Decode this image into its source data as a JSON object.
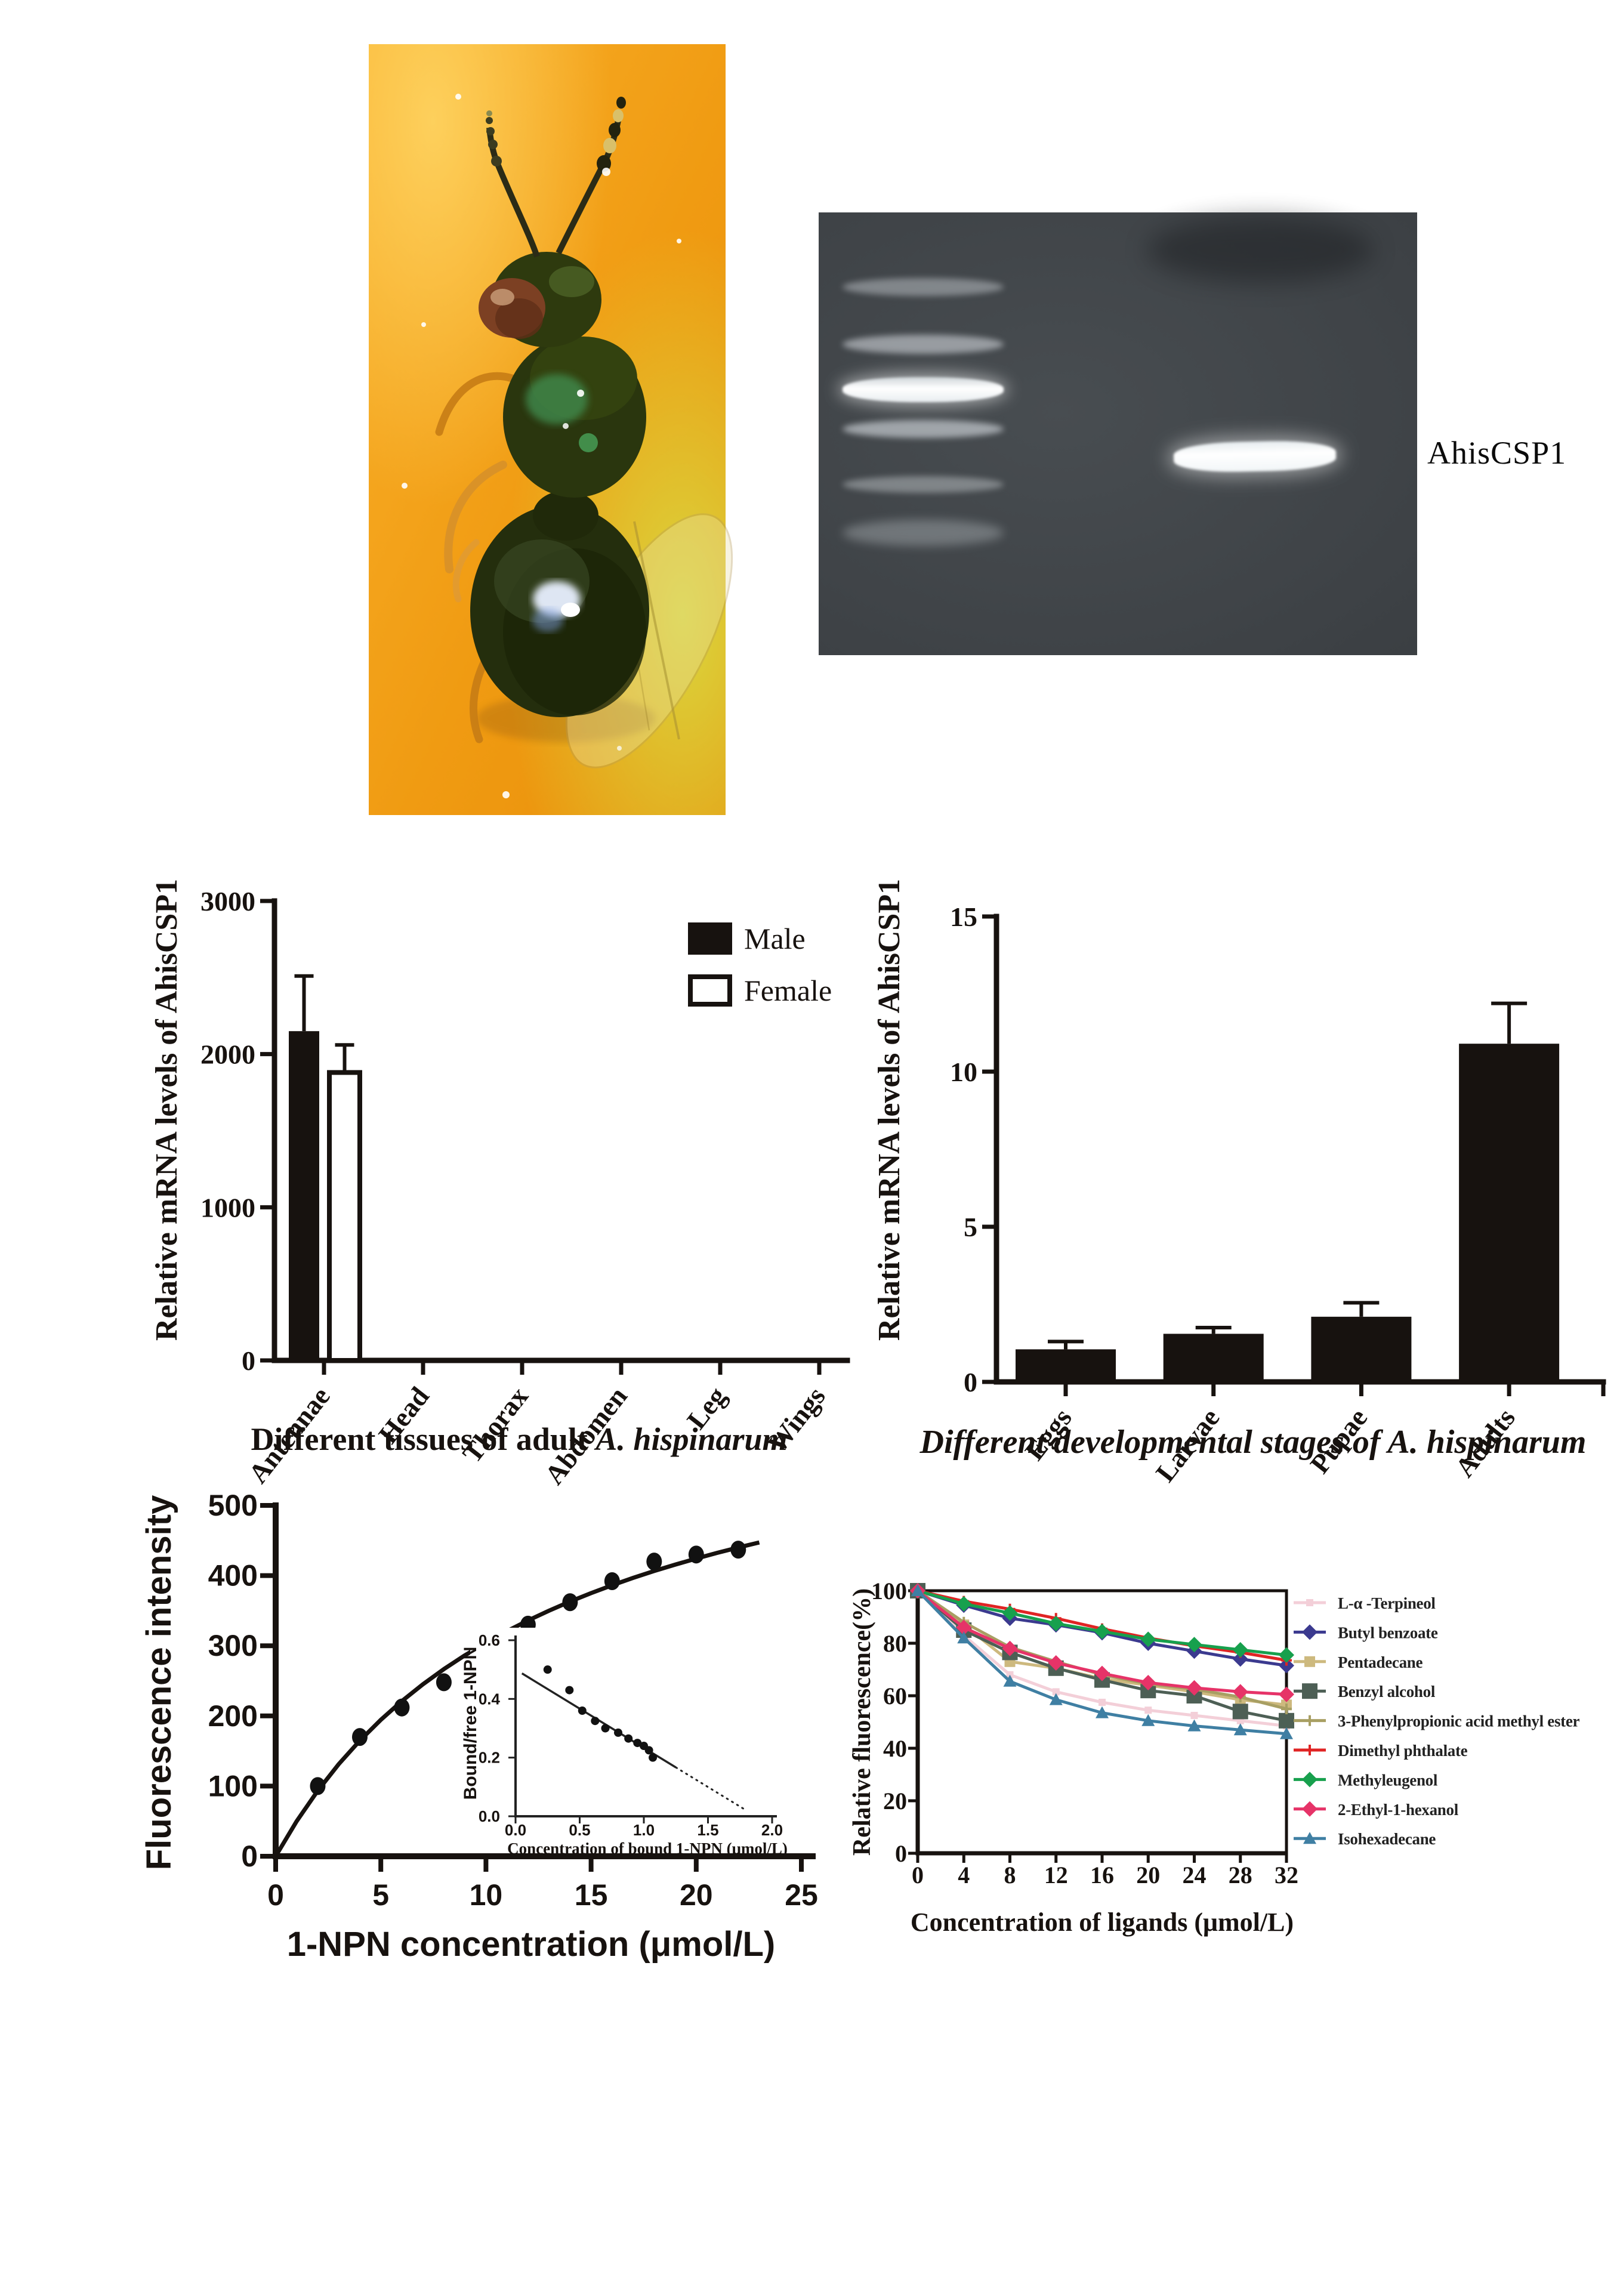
{
  "gel": {
    "band_label": "AhisCSP1"
  },
  "chart_data": [
    {
      "id": "tissues",
      "type": "bar",
      "ylabel": "Relative mRNA levels of AhisCSP1",
      "yticks": [
        0,
        1000,
        2000,
        3000
      ],
      "ylim": [
        0,
        3000
      ],
      "categories": [
        "Antennae",
        "Head",
        "Thorax",
        "Abdomen",
        "Leg",
        "Wings"
      ],
      "series": [
        {
          "name": "Male",
          "style": "filled",
          "values": [
            2150,
            0,
            0,
            0,
            0,
            0
          ],
          "errors": [
            360,
            0,
            0,
            0,
            0,
            0
          ]
        },
        {
          "name": "Female",
          "style": "open",
          "values": [
            1880,
            0,
            0,
            0,
            0,
            0
          ],
          "errors": [
            180,
            0,
            0,
            0,
            0,
            0
          ]
        }
      ],
      "legend_position": "top-right",
      "xlabel_prefix": "Different tissues of adult ",
      "xlabel_species": "A. hispinarum",
      "xlabel_italic_all": false
    },
    {
      "id": "stages",
      "type": "bar",
      "ylabel": "Relative mRNA levels of AhisCSP1",
      "yticks": [
        0,
        5,
        10,
        15
      ],
      "ylim": [
        0,
        15
      ],
      "categories": [
        "Eggs",
        "Larvae",
        "Pupae",
        "Adults"
      ],
      "series": [
        {
          "name": "",
          "style": "filled",
          "values": [
            1.05,
            1.55,
            2.1,
            10.9
          ],
          "errors": [
            0.25,
            0.2,
            0.45,
            1.3
          ]
        }
      ],
      "xlabel_prefix": "Different developmental stages of ",
      "xlabel_species": "A. hispinarum",
      "xlabel_italic_all": true
    },
    {
      "id": "binding",
      "type": "scatter",
      "xlabel": "1-NPN concentration (μmol/L)",
      "ylabel": "Fluorescence intensity",
      "xticks": [
        0,
        5,
        10,
        15,
        20,
        25
      ],
      "yticks": [
        0,
        100,
        200,
        300,
        400,
        500
      ],
      "xlim": [
        0,
        25
      ],
      "ylim": [
        0,
        500
      ],
      "points_x": [
        2,
        4,
        6,
        8,
        10,
        12,
        14,
        16,
        18,
        20,
        22
      ],
      "points_y": [
        100,
        170,
        212,
        248,
        288,
        330,
        362,
        392,
        420,
        430,
        437
      ],
      "curve_x": [
        0,
        1,
        2,
        3,
        4,
        5,
        6,
        7,
        8,
        9,
        10,
        11,
        12,
        13,
        14,
        15,
        16,
        17,
        18,
        19,
        20,
        21,
        22,
        23
      ],
      "curve_y": [
        0,
        50,
        93.3,
        131.3,
        164.7,
        194.4,
        221.1,
        245,
        266.7,
        286.4,
        304.3,
        320.8,
        336,
        350,
        363,
        375,
        386.2,
        396.7,
        406.5,
        415.6,
        424.2,
        432.4,
        440,
        447.2
      ],
      "inset": {
        "ylabel": "Bound/free 1-NPN",
        "xlabel": "Concentration of bound 1-NPN (μmol/L)",
        "xticks": [
          "0.0",
          "0.5",
          "1.0",
          "1.5",
          "2.0"
        ],
        "yticks": [
          "0.0",
          "0.2",
          "0.4",
          "0.6"
        ],
        "xlim": [
          0,
          2
        ],
        "ylim": [
          0,
          0.6
        ],
        "points_x": [
          0.25,
          0.42,
          0.52,
          0.62,
          0.7,
          0.8,
          0.88,
          0.95,
          1.0,
          1.04,
          1.07
        ],
        "points_y": [
          0.5,
          0.43,
          0.36,
          0.325,
          0.3,
          0.285,
          0.265,
          0.25,
          0.24,
          0.225,
          0.2
        ],
        "fit_x": [
          0.05,
          1.78
        ],
        "fit_y": [
          0.487,
          0.025
        ]
      }
    },
    {
      "id": "ligands",
      "type": "line",
      "xlabel": "Concentration of ligands (μmol/L)",
      "ylabel": "Relative fluorescence(%)",
      "x": [
        0,
        4,
        8,
        12,
        16,
        20,
        24,
        28,
        32
      ],
      "xticks": [
        0,
        4,
        8,
        12,
        16,
        20,
        24,
        28,
        32
      ],
      "yticks": [
        0,
        20,
        40,
        60,
        80,
        100
      ],
      "xlim": [
        0,
        32
      ],
      "ylim": [
        0,
        100
      ],
      "legend_position": "right",
      "series": [
        {
          "name": "L-α -Terpineol",
          "color": "#f3cfd8",
          "marker": "square_s",
          "values": [
            100,
            83,
            68,
            61.5,
            57.5,
            54.5,
            52.5,
            50.5,
            48.5
          ]
        },
        {
          "name": "Butyl benzoate",
          "color": "#3b3a8f",
          "marker": "diamond",
          "values": [
            100,
            94.5,
            89.5,
            87,
            84,
            80,
            77,
            74,
            71.5
          ]
        },
        {
          "name": "Pentadecane",
          "color": "#cdb97e",
          "marker": "square",
          "values": [
            100,
            87,
            73,
            70.5,
            66.5,
            64,
            61.5,
            58.5,
            56.5
          ]
        },
        {
          "name": "Benzyl alcohol",
          "color": "#4d5f55",
          "marker": "square_l",
          "values": [
            100,
            85,
            76.5,
            70.5,
            66,
            62,
            60,
            54,
            50.5
          ]
        },
        {
          "name": "3-Phenylpropionic acid methyl ester",
          "color": "#a89f63",
          "marker": "plus",
          "values": [
            100,
            88,
            78.5,
            73,
            68,
            64.5,
            62.5,
            59.5,
            55
          ]
        },
        {
          "name": "Dimethyl phthalate",
          "color": "#e02424",
          "marker": "plus",
          "values": [
            100,
            96,
            93,
            89.5,
            85.5,
            82,
            79,
            76.5,
            73.5
          ]
        },
        {
          "name": "Methyleugenol",
          "color": "#17a04d",
          "marker": "diamond",
          "values": [
            100,
            95,
            91.5,
            87.5,
            84.5,
            81.5,
            79.5,
            77.5,
            75.5
          ]
        },
        {
          "name": "2-Ethyl-1-hexanol",
          "color": "#e63368",
          "marker": "diamond",
          "values": [
            100,
            86,
            78,
            72.5,
            68.5,
            65,
            63,
            61.5,
            60.5
          ]
        },
        {
          "name": "Isohexadecane",
          "color": "#3f7fa3",
          "marker": "triangle",
          "values": [
            100,
            82,
            65.5,
            58.5,
            53.5,
            50.5,
            48.5,
            47,
            45.5
          ]
        }
      ]
    }
  ]
}
